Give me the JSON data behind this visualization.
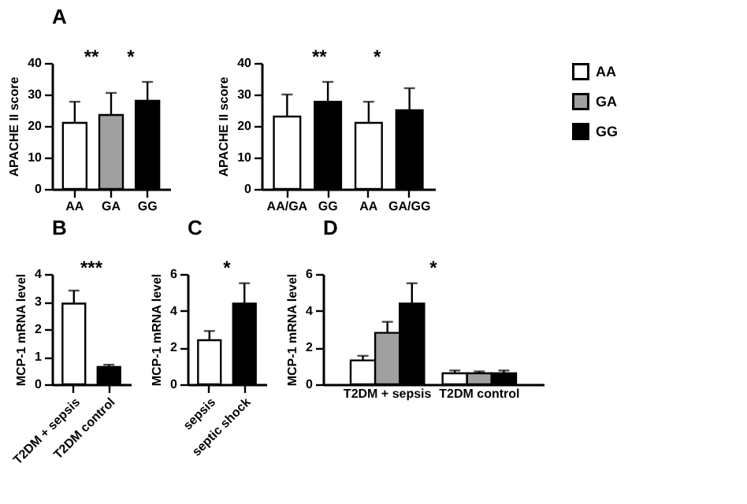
{
  "chart_data": [
    {
      "type": "bar",
      "title": "A",
      "ylabel": "APACHE II score",
      "categories": [
        "AA",
        "GA",
        "GG"
      ],
      "values": [
        21,
        23.5,
        28
      ],
      "errors": [
        6.7,
        7,
        6
      ],
      "colors": [
        "#ffffff",
        "#a0a0a0",
        "#000000"
      ],
      "ylim": [
        0,
        40
      ],
      "yticks": [
        0,
        10,
        20,
        30,
        40
      ],
      "annotations": [
        "**",
        "*"
      ]
    },
    {
      "type": "bar",
      "ylabel": "APACHE II score",
      "categories": [
        "AA/GA",
        "GG",
        "AA",
        "GA/GG"
      ],
      "values": [
        23,
        27.7,
        21,
        25
      ],
      "errors": [
        7,
        6.3,
        6.7,
        7
      ],
      "colors": [
        "#ffffff",
        "#000000",
        "#ffffff",
        "#000000"
      ],
      "ylim": [
        0,
        40
      ],
      "yticks": [
        0,
        10,
        20,
        30,
        40
      ],
      "annotations": [
        "**",
        "*"
      ]
    },
    {
      "type": "bar",
      "title": "B",
      "ylabel": "MCP-1 mRNA level",
      "categories": [
        "T2DM + sepsis",
        "T2DM control"
      ],
      "values": [
        2.93,
        0.63
      ],
      "errors": [
        0.47,
        0.08
      ],
      "colors": [
        "#ffffff",
        "#000000"
      ],
      "ylim": [
        0,
        4
      ],
      "yticks": [
        0,
        1,
        2,
        3,
        4
      ],
      "annotations": [
        "***"
      ]
    },
    {
      "type": "bar",
      "title": "C",
      "ylabel": "MCP-1 mRNA level",
      "categories": [
        "sepsis",
        "septic shock"
      ],
      "values": [
        2.4,
        4.4
      ],
      "errors": [
        0.5,
        1.1
      ],
      "colors": [
        "#ffffff",
        "#000000"
      ],
      "ylim": [
        0,
        6
      ],
      "yticks": [
        0,
        2,
        4,
        6
      ],
      "annotations": [
        "*"
      ]
    },
    {
      "type": "bar",
      "title": "D",
      "ylabel": "MCP-1 mRNA level",
      "categories": [
        "T2DM + sepsis",
        "T2DM control"
      ],
      "legend": "top right",
      "ylim": [
        0,
        6
      ],
      "yticks": [
        0,
        2,
        4,
        6
      ],
      "annotations": [
        "*"
      ],
      "series": [
        {
          "name": "AA",
          "color": "#ffffff",
          "values": [
            1.3,
            0.6
          ],
          "errors": [
            0.25,
            0.15
          ]
        },
        {
          "name": "GA",
          "color": "#a0a0a0",
          "values": [
            2.8,
            0.6
          ],
          "errors": [
            0.6,
            0.1
          ]
        },
        {
          "name": "GG",
          "color": "#000000",
          "values": [
            4.4,
            0.6
          ],
          "errors": [
            1.1,
            0.15
          ]
        }
      ]
    }
  ]
}
